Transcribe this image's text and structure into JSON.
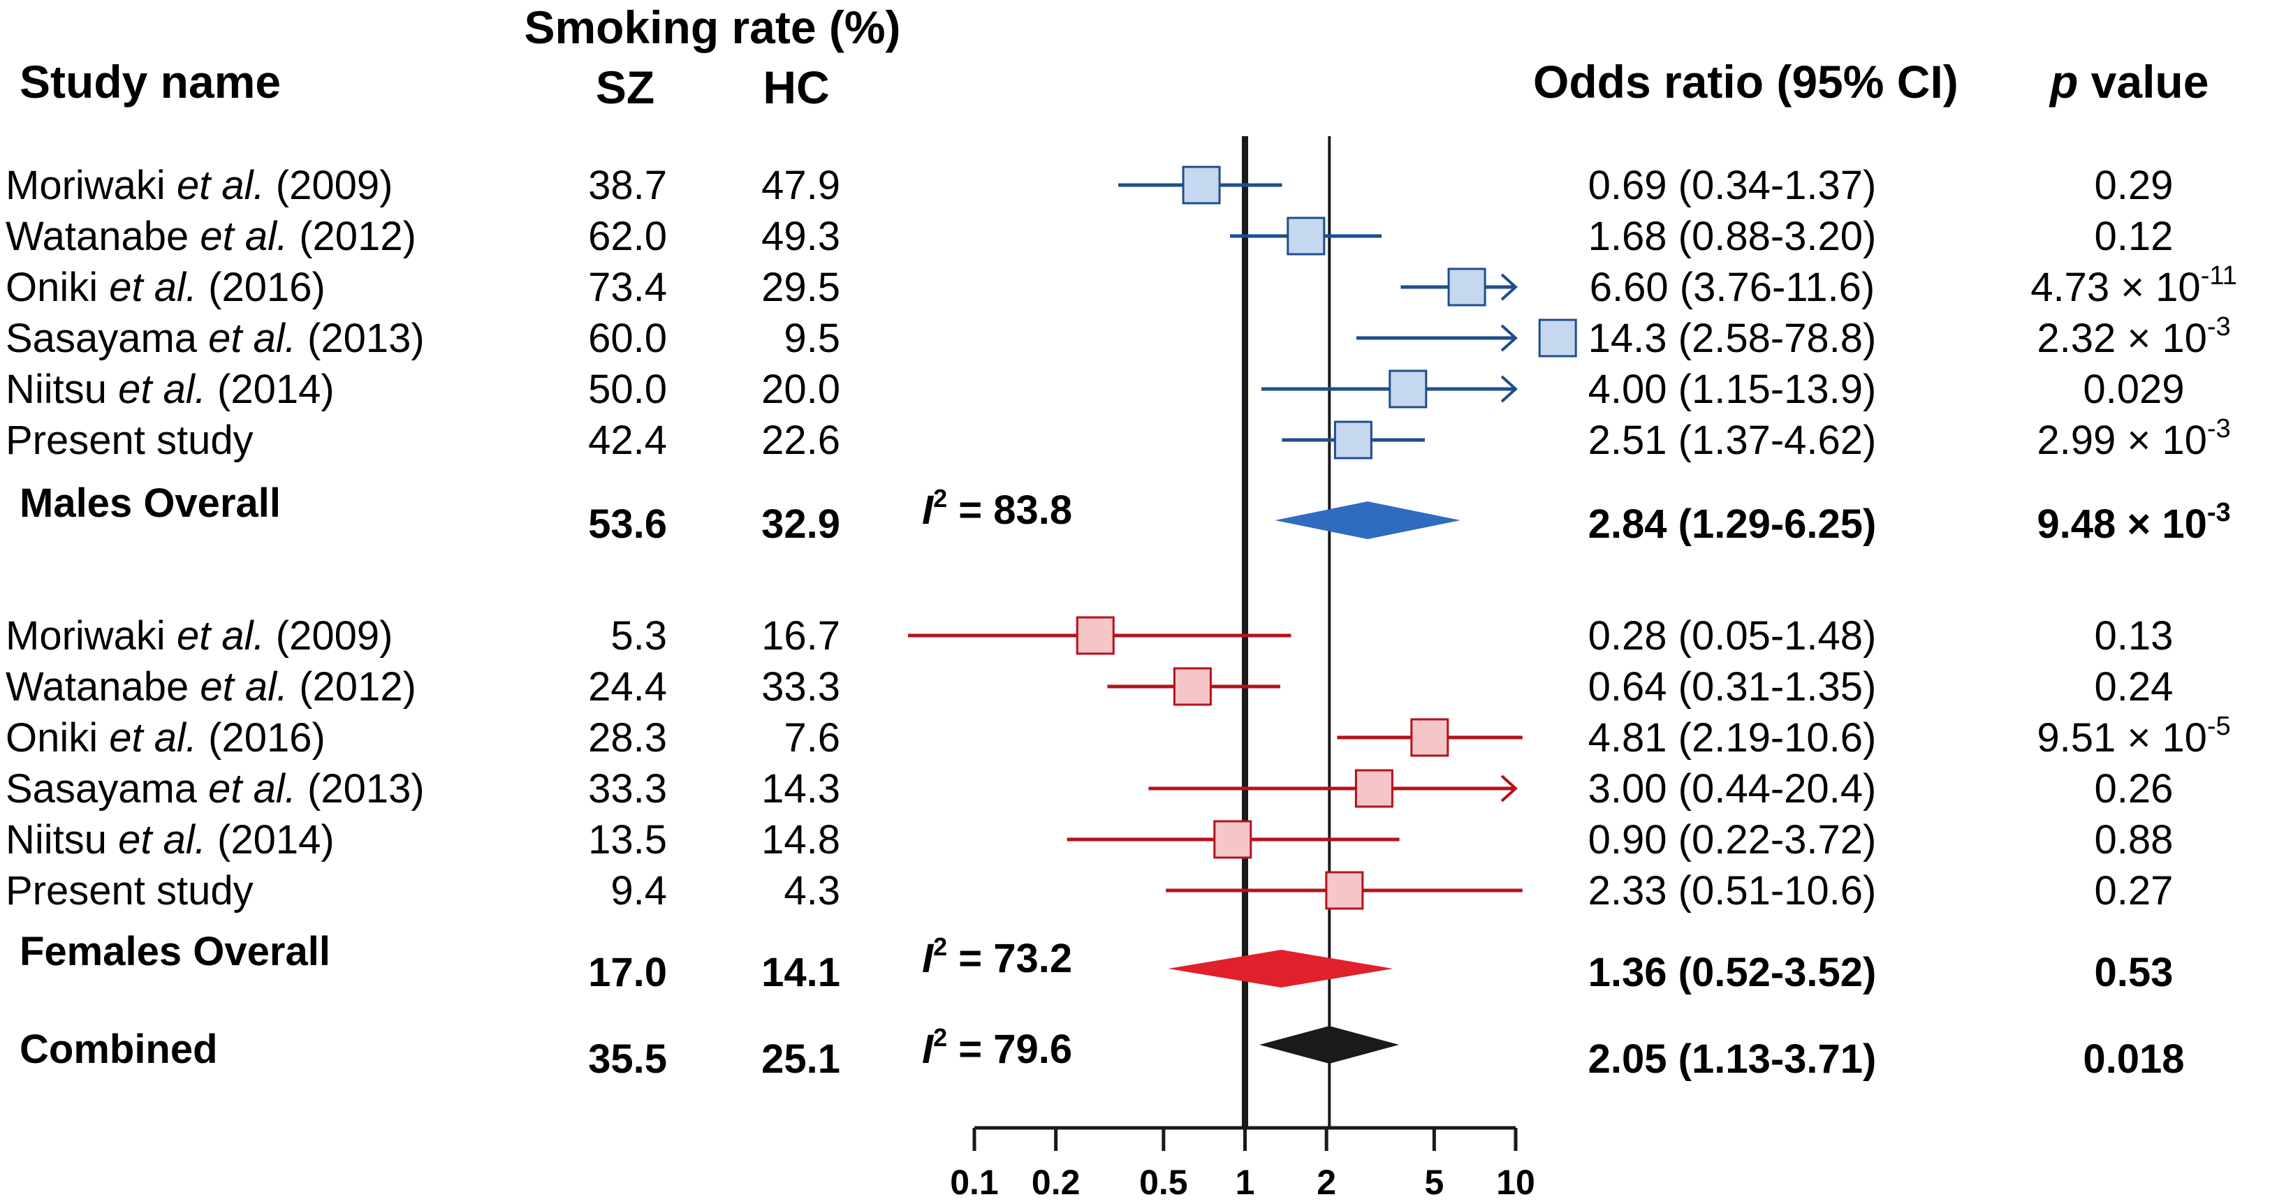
{
  "chart_data": {
    "type": "forest",
    "x_scale": "log",
    "xlim": [
      0.1,
      10
    ],
    "x_ticks": [
      0.1,
      0.2,
      0.5,
      1,
      2,
      5,
      10
    ],
    "x_tick_labels": [
      "0.1",
      "0.2",
      "0.5",
      "1",
      "2",
      "5",
      "10"
    ],
    "reference_lines": [
      1,
      2.05
    ],
    "headers": {
      "smoking_rate": "Smoking rate (%)",
      "study_name": "Study name",
      "sz": "SZ",
      "hc": "HC",
      "odds_ratio": "Odds ratio (95% CI)",
      "p_value_italic": "p",
      "p_value_rest": " value"
    },
    "groups": [
      {
        "color": "#1f4e8c",
        "fill": "#c6d8ef",
        "diamond_color": "#2f6bbf",
        "studies": [
          {
            "author": "Moriwaki",
            "etal": "et al.",
            "year": " (2009)",
            "sz": "38.7",
            "hc": "47.9",
            "or": 0.69,
            "lo": 0.34,
            "hi": 1.37,
            "or_text": "0.69 (0.34-1.37)",
            "p_main": "0.29",
            "p_exp": ""
          },
          {
            "author": "Watanabe",
            "etal": "et al.",
            "year": " (2012)",
            "sz": "62.0",
            "hc": "49.3",
            "or": 1.68,
            "lo": 0.88,
            "hi": 3.2,
            "or_text": "1.68 (0.88-3.20)",
            "p_main": "0.12",
            "p_exp": ""
          },
          {
            "author": "Oniki",
            "etal": "et al.",
            "year": " (2016)",
            "sz": "73.4",
            "hc": "29.5",
            "or": 6.6,
            "lo": 3.76,
            "hi": 11.6,
            "or_text": "6.60 (3.76-11.6)",
            "p_main": "4.73 × 10",
            "p_exp": "-11"
          },
          {
            "author": "Sasayama",
            "etal": "et al.",
            "year": " (2013)",
            "sz": "60.0",
            "hc": "9.5",
            "or": 14.3,
            "lo": 2.58,
            "hi": 78.8,
            "or_text": "14.3 (2.58-78.8)",
            "p_main": "2.32 × 10",
            "p_exp": "-3"
          },
          {
            "author": "Niitsu",
            "etal": "et al.",
            "year": " (2014)",
            "sz": "50.0",
            "hc": "20.0",
            "or": 4.0,
            "lo": 1.15,
            "hi": 13.9,
            "or_text": "4.00 (1.15-13.9)",
            "p_main": "0.029",
            "p_exp": ""
          },
          {
            "author": "Present study",
            "etal": "",
            "year": "",
            "sz": "42.4",
            "hc": "22.6",
            "or": 2.51,
            "lo": 1.37,
            "hi": 4.62,
            "or_text": "2.51 (1.37-4.62)",
            "p_main": "2.99 × 10",
            "p_exp": "-3"
          }
        ],
        "overall": {
          "label": "Males Overall",
          "sz": "53.6",
          "hc": "32.9",
          "i2_label": "I",
          "i2_sup": "2",
          "i2_value": " = 83.8",
          "or": 2.84,
          "lo": 1.29,
          "hi": 6.25,
          "or_text": "2.84 (1.29-6.25)",
          "p_main": "9.48 × 10",
          "p_exp": "-3"
        }
      },
      {
        "color": "#b5121b",
        "fill": "#f4c6c8",
        "diamond_color": "#e0212b",
        "studies": [
          {
            "author": "Moriwaki",
            "etal": "et al.",
            "year": " (2009)",
            "sz": "5.3",
            "hc": "16.7",
            "or": 0.28,
            "lo": 0.05,
            "hi": 1.48,
            "or_text": "0.28 (0.05-1.48)",
            "p_main": "0.13",
            "p_exp": ""
          },
          {
            "author": "Watanabe",
            "etal": "et al.",
            "year": " (2012)",
            "sz": "24.4",
            "hc": "33.3",
            "or": 0.64,
            "lo": 0.31,
            "hi": 1.35,
            "or_text": "0.64 (0.31-1.35)",
            "p_main": "0.24",
            "p_exp": ""
          },
          {
            "author": "Oniki",
            "etal": "et al.",
            "year": " (2016)",
            "sz": "28.3",
            "hc": "7.6",
            "or": 4.81,
            "lo": 2.19,
            "hi": 10.6,
            "or_text": "4.81 (2.19-10.6)",
            "p_main": "9.51 × 10",
            "p_exp": "-5"
          },
          {
            "author": "Sasayama",
            "etal": "et al.",
            "year": " (2013)",
            "sz": "33.3",
            "hc": "14.3",
            "or": 3.0,
            "lo": 0.44,
            "hi": 20.4,
            "or_text": "3.00 (0.44-20.4)",
            "p_main": "0.26",
            "p_exp": ""
          },
          {
            "author": "Niitsu",
            "etal": "et al.",
            "year": " (2014)",
            "sz": "13.5",
            "hc": "14.8",
            "or": 0.9,
            "lo": 0.22,
            "hi": 3.72,
            "or_text": "0.90 (0.22-3.72)",
            "p_main": "0.88",
            "p_exp": ""
          },
          {
            "author": "Present study",
            "etal": "",
            "year": "",
            "sz": "9.4",
            "hc": "4.3",
            "or": 2.33,
            "lo": 0.51,
            "hi": 10.6,
            "or_text": "2.33 (0.51-10.6)",
            "p_main": "0.27",
            "p_exp": ""
          }
        ],
        "overall": {
          "label": "Females Overall",
          "sz": "17.0",
          "hc": "14.1",
          "i2_label": "I",
          "i2_sup": "2",
          "i2_value": " = 73.2",
          "or": 1.36,
          "lo": 0.52,
          "hi": 3.52,
          "or_text": "1.36 (0.52-3.52)",
          "p_main": "0.53",
          "p_exp": ""
        }
      }
    ],
    "combined": {
      "label": "Combined",
      "sz": "35.5",
      "hc": "25.1",
      "i2_label": "I",
      "i2_sup": "2",
      "i2_value": " = 79.6",
      "or": 2.05,
      "lo": 1.13,
      "hi": 3.71,
      "or_text": "2.05 (1.13-3.71)",
      "p_main": "0.018",
      "p_exp": "",
      "color": "#1a1a1a"
    }
  }
}
